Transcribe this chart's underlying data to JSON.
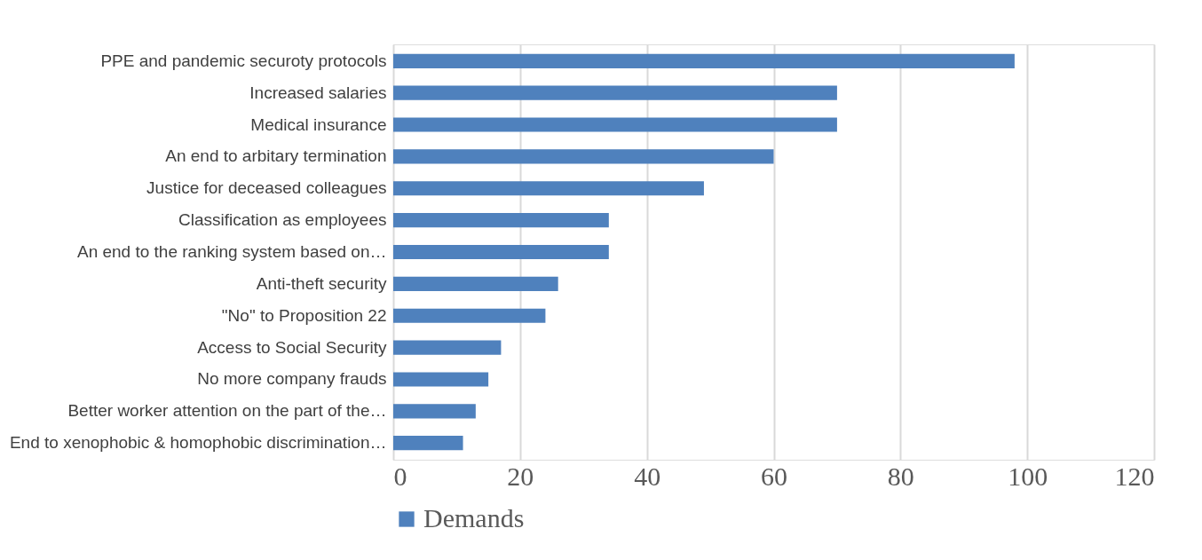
{
  "chart_data": {
    "type": "bar",
    "orientation": "horizontal",
    "categories": [
      "PPE and pandemic securoty protocols",
      "Increased salaries",
      "Medical insurance",
      "An end to arbitary termination",
      "Justice for deceased colleagues",
      "Classification as employees",
      "An end to the ranking system based on…",
      "Anti-theft security",
      "\"No\" to Proposition 22",
      "Access to Social Security",
      "No more company frauds",
      "Better worker attention on the part of the…",
      "End to xenophobic & homophobic discrimination…"
    ],
    "series": [
      {
        "name": "Demands",
        "color": "#4f81bd",
        "values": [
          98,
          70,
          70,
          60,
          49,
          34,
          34,
          26,
          24,
          17,
          15,
          13,
          11
        ]
      }
    ],
    "xlim": [
      0,
      120
    ],
    "xticks": [
      0,
      20,
      40,
      60,
      80,
      100,
      120
    ],
    "grid": "x",
    "legend": "bottom"
  }
}
